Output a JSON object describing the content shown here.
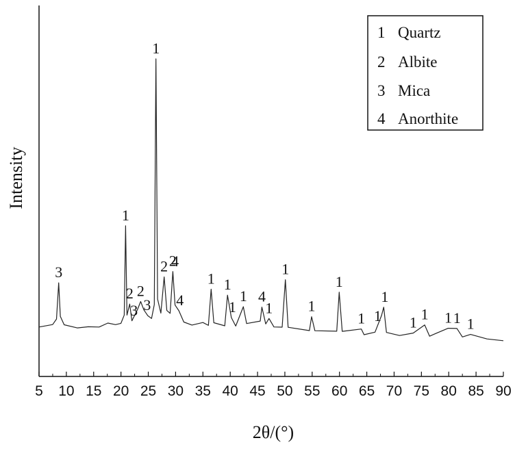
{
  "chart_data": {
    "type": "line",
    "xlabel": "2θ/(°)",
    "ylabel": "Intensity",
    "xlim": [
      5,
      90
    ],
    "x_ticks": [
      5,
      10,
      15,
      20,
      25,
      30,
      35,
      40,
      45,
      50,
      55,
      60,
      65,
      70,
      75,
      80,
      85,
      90
    ],
    "y_ticks_shown": false,
    "grid": false,
    "legend": {
      "placement": "top-right",
      "entries": [
        {
          "key": "1",
          "name": "Quartz"
        },
        {
          "key": "2",
          "name": "Albite"
        },
        {
          "key": "3",
          "name": "Mica"
        },
        {
          "key": "4",
          "name": "Anorthite"
        }
      ]
    },
    "series": [
      {
        "values": [
          [
            5,
            3
          ],
          [
            7.5,
            4
          ],
          [
            8.2,
            6
          ],
          [
            8.6,
            19
          ],
          [
            8.9,
            7
          ],
          [
            9.6,
            4
          ],
          [
            12,
            3
          ],
          [
            14,
            3.5
          ],
          [
            16,
            3.5
          ],
          [
            17.6,
            5
          ],
          [
            19,
            4.5
          ],
          [
            20,
            5
          ],
          [
            20.6,
            8
          ],
          [
            20.85,
            40
          ],
          [
            21.1,
            8
          ],
          [
            21.6,
            12
          ],
          [
            22.0,
            6
          ],
          [
            23.0,
            10
          ],
          [
            23.6,
            13
          ],
          [
            24.2,
            10
          ],
          [
            24.9,
            8
          ],
          [
            25.6,
            7
          ],
          [
            26.1,
            12
          ],
          [
            26.4,
            100
          ],
          [
            26.7,
            14
          ],
          [
            27.3,
            9
          ],
          [
            27.9,
            22
          ],
          [
            28.4,
            10
          ],
          [
            29.0,
            9
          ],
          [
            29.5,
            24
          ],
          [
            29.9,
            12
          ],
          [
            30.6,
            10
          ],
          [
            31.5,
            6
          ],
          [
            33,
            5
          ],
          [
            35,
            6
          ],
          [
            36.0,
            5
          ],
          [
            36.5,
            18
          ],
          [
            37,
            6
          ],
          [
            39.0,
            5
          ],
          [
            39.5,
            16
          ],
          [
            40.2,
            8
          ],
          [
            41,
            5
          ],
          [
            42.4,
            12
          ],
          [
            43,
            6
          ],
          [
            45.5,
            7
          ],
          [
            45.8,
            12
          ],
          [
            46.5,
            6
          ],
          [
            47.1,
            8
          ],
          [
            48,
            5
          ],
          [
            49.5,
            5
          ],
          [
            50.1,
            22
          ],
          [
            50.6,
            5
          ],
          [
            54.5,
            4
          ],
          [
            54.9,
            9
          ],
          [
            55.5,
            4
          ],
          [
            59.5,
            4
          ],
          [
            59.95,
            18
          ],
          [
            60.5,
            4
          ],
          [
            64.0,
            5
          ],
          [
            64.5,
            3
          ],
          [
            66.5,
            4
          ],
          [
            67.7,
            10
          ],
          [
            68.1,
            13
          ],
          [
            68.6,
            4
          ],
          [
            71,
            3
          ],
          [
            73.5,
            4
          ],
          [
            75.6,
            7
          ],
          [
            76.5,
            3
          ],
          [
            77.6,
            4
          ],
          [
            79.9,
            6
          ],
          [
            81.5,
            6
          ],
          [
            82.5,
            3
          ],
          [
            84,
            4
          ],
          [
            87,
            2.5
          ],
          [
            90,
            2
          ]
        ]
      }
    ],
    "peak_labels": [
      {
        "x": 8.6,
        "label": "3"
      },
      {
        "x": 20.85,
        "label": "1"
      },
      {
        "x": 21.6,
        "label": "2"
      },
      {
        "x": 22.4,
        "label": "3"
      },
      {
        "x": 23.6,
        "label": "2"
      },
      {
        "x": 24.8,
        "label": "3"
      },
      {
        "x": 26.4,
        "label": "1"
      },
      {
        "x": 27.9,
        "label": "2"
      },
      {
        "x": 29.5,
        "label": "2"
      },
      {
        "x": 29.9,
        "label": "4"
      },
      {
        "x": 30.8,
        "label": "4"
      },
      {
        "x": 36.5,
        "label": "1"
      },
      {
        "x": 39.5,
        "label": "1"
      },
      {
        "x": 40.4,
        "label": "1"
      },
      {
        "x": 42.4,
        "label": "1"
      },
      {
        "x": 45.8,
        "label": "4"
      },
      {
        "x": 47.1,
        "label": "1"
      },
      {
        "x": 50.1,
        "label": "1"
      },
      {
        "x": 54.9,
        "label": "1"
      },
      {
        "x": 59.95,
        "label": "1"
      },
      {
        "x": 64.0,
        "label": "1"
      },
      {
        "x": 67.0,
        "label": "1"
      },
      {
        "x": 68.3,
        "label": "1"
      },
      {
        "x": 73.5,
        "label": "1"
      },
      {
        "x": 75.6,
        "label": "1"
      },
      {
        "x": 79.9,
        "label": "1"
      },
      {
        "x": 81.5,
        "label": "1"
      },
      {
        "x": 84.0,
        "label": "1"
      }
    ]
  }
}
